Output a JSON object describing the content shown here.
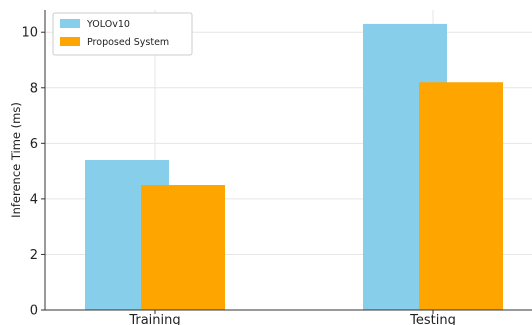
{
  "chart_data": {
    "type": "bar",
    "categories": [
      "Training",
      "Testing"
    ],
    "series": [
      {
        "name": "YOLOv10",
        "values": [
          5.4,
          10.3
        ],
        "color": "#87ceeb"
      },
      {
        "name": "Proposed System",
        "values": [
          4.5,
          8.2
        ],
        "color": "#ffa500"
      }
    ],
    "title": "",
    "xlabel": "",
    "ylabel": "Inference Time (ms)",
    "ylim": [
      0,
      10.8
    ],
    "yticks": [
      0,
      2,
      4,
      6,
      8,
      10
    ],
    "grid": true,
    "legend_position": "top-left"
  }
}
